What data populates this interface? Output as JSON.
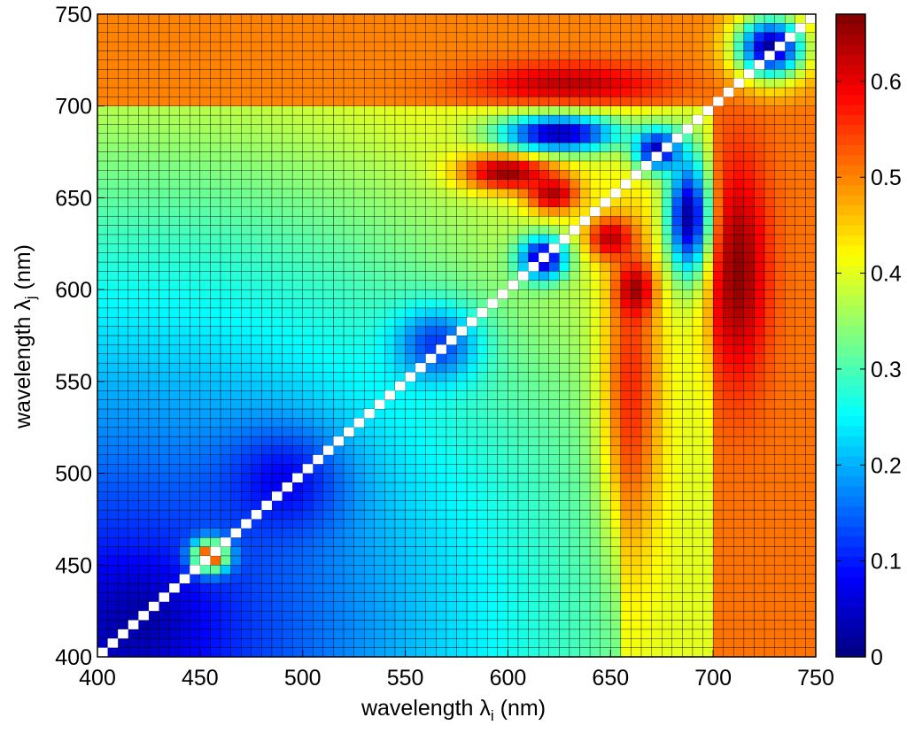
{
  "chart_data": {
    "type": "heatmap",
    "title": "",
    "xlabel": "wavelength λ_i (nm)",
    "xlabel_parts": {
      "text": "wavelength ",
      "symbol": "λ",
      "subscript": "i",
      "unit": " (nm)"
    },
    "ylabel": "wavelength λ_j (nm)",
    "ylabel_parts": {
      "text": "wavelength ",
      "symbol": "λ",
      "subscript": "j",
      "unit": " (nm)"
    },
    "xlim": [
      400,
      750
    ],
    "ylim": [
      400,
      750
    ],
    "x_step": 5,
    "y_step": 5,
    "xticks": [
      "400",
      "450",
      "500",
      "550",
      "600",
      "650",
      "700",
      "750"
    ],
    "yticks": [
      "400",
      "450",
      "500",
      "550",
      "600",
      "650",
      "700",
      "750"
    ],
    "colorbar": {
      "colormap": "jet",
      "range": [
        0,
        0.67
      ],
      "ticks": [
        "0",
        "0.1",
        "0.2",
        "0.3",
        "0.4",
        "0.5",
        "0.6"
      ]
    },
    "diagonal": {
      "value": null,
      "color": "#ffffff"
    },
    "grid": "cell borders",
    "base_regions": [
      {
        "x": [
          400,
          750
        ],
        "y": [
          700,
          750
        ],
        "value": 0.5
      },
      {
        "x": [
          700,
          750
        ],
        "y": [
          400,
          700
        ],
        "value": 0.51
      },
      {
        "x": [
          655,
          700
        ],
        "y": [
          400,
          700
        ],
        "value": 0.4
      }
    ],
    "features": [
      {
        "x": 712,
        "y": 610,
        "sx": 10,
        "sy": 42,
        "value": 0.66
      },
      {
        "x": 660,
        "y": 545,
        "sx": 10,
        "sy": 60,
        "value": 0.56
      },
      {
        "x": 630,
        "y": 712,
        "sx": 32,
        "sy": 8,
        "value": 0.63
      },
      {
        "x": 600,
        "y": 664,
        "sx": 16,
        "sy": 7,
        "value": 0.66
      },
      {
        "x": 622,
        "y": 652,
        "sx": 9,
        "sy": 7,
        "value": 0.64
      },
      {
        "x": 650,
        "y": 628,
        "sx": 8,
        "sy": 8,
        "value": 0.63
      },
      {
        "x": 662,
        "y": 600,
        "sx": 6,
        "sy": 10,
        "value": 0.65
      },
      {
        "x": 455,
        "y": 455,
        "sx": 6,
        "sy": 6,
        "value": 0.62
      },
      {
        "x": 728,
        "y": 732,
        "sx": 12,
        "sy": 12,
        "value": 0.02
      },
      {
        "x": 625,
        "y": 685,
        "sx": 20,
        "sy": 7,
        "value": 0.03
      },
      {
        "x": 688,
        "y": 640,
        "sx": 7,
        "sy": 22,
        "value": 0.03
      },
      {
        "x": 673,
        "y": 676,
        "sx": 8,
        "sy": 8,
        "value": 0.04
      },
      {
        "x": 617,
        "y": 617,
        "sx": 8,
        "sy": 8,
        "value": 0.03
      },
      {
        "x": 420,
        "y": 420,
        "sx": 18,
        "sy": 18,
        "value": 0.03
      },
      {
        "x": 490,
        "y": 495,
        "sx": 20,
        "sy": 20,
        "value": 0.08
      },
      {
        "x": 565,
        "y": 570,
        "sx": 14,
        "sy": 14,
        "value": 0.12
      }
    ]
  }
}
